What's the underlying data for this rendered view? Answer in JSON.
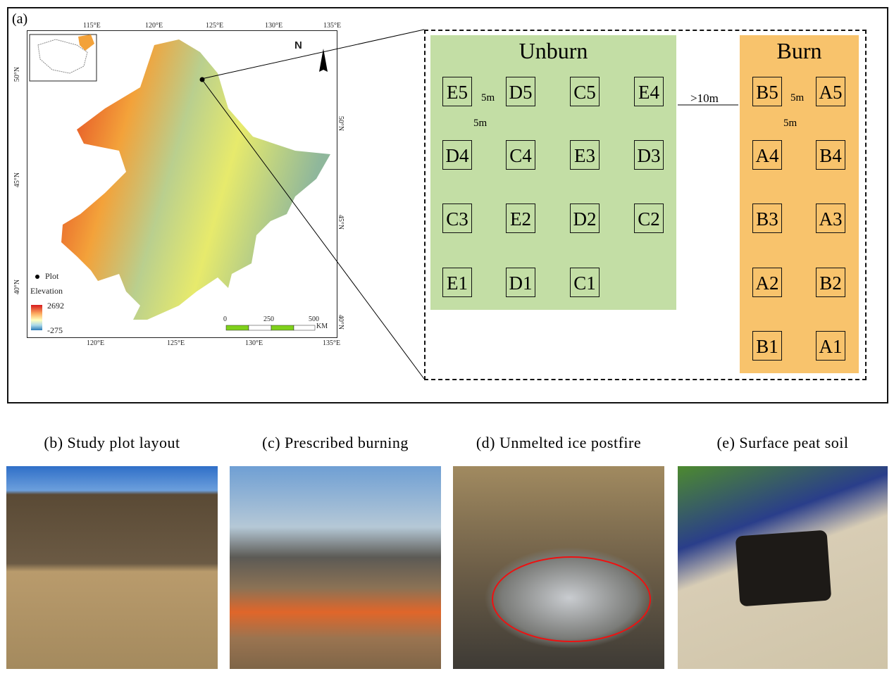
{
  "panel_a": {
    "label": "(a)",
    "top_ticks": [
      "115°E",
      "120°E",
      "125°E",
      "130°E",
      "135°E"
    ],
    "bottom_ticks": [
      "120°E",
      "125°E",
      "130°E",
      "135°E"
    ],
    "left_ticks": [
      "50°N",
      "45°N",
      "40°N"
    ],
    "right_ticks": [
      "50°N",
      "45°N",
      "40°N"
    ],
    "north": "N",
    "legend": {
      "plot": "Plot",
      "elevation": "Elevation",
      "max": "2692",
      "min": "-275",
      "colors": [
        "#d7191c",
        "#fdae61",
        "#ffffbf",
        "#abd9e9",
        "#2c7bb6"
      ]
    },
    "scale": {
      "labels": [
        "0",
        "250",
        "500"
      ],
      "unit": "KM",
      "color": "#7fd11b"
    }
  },
  "layout": {
    "unburn_title": "Unburn",
    "burn_title": "Burn",
    "unburn_color": "#c3dea5",
    "burn_color": "#f8c36c",
    "unburn_rows": [
      [
        "E5",
        "D5",
        "C5",
        "E4"
      ],
      [
        "D4",
        "C4",
        "E3",
        "D3"
      ],
      [
        "C3",
        "E2",
        "D2",
        "C2"
      ],
      [
        "E1",
        "D1",
        "C1"
      ]
    ],
    "burn_rows": [
      [
        "B5",
        "A5"
      ],
      [
        "A4",
        "B4"
      ],
      [
        "B3",
        "A3"
      ],
      [
        "A2",
        "B2"
      ],
      [
        "B1",
        "A1"
      ]
    ],
    "spacing": "5m",
    "gap": ">10m"
  },
  "captions": [
    "(b) Study plot layout",
    "(c) Prescribed burning",
    "(d) Unmelted ice postfire",
    "(e) Surface peat soil"
  ]
}
